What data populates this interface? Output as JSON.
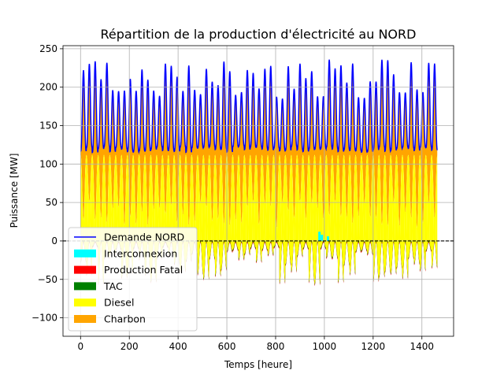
{
  "chart_data": {
    "type": "area",
    "title": "Répartition de la production d'électricité au NORD",
    "xlabel": "Temps [heure]",
    "ylabel": "Puissance [MW]",
    "xlim": [
      -72,
      1530
    ],
    "ylim": [
      -124,
      254
    ],
    "xticks": [
      0,
      200,
      400,
      600,
      800,
      1000,
      1200,
      1400
    ],
    "yticks": [
      -100,
      -50,
      0,
      50,
      100,
      150,
      200,
      250
    ],
    "grid": true,
    "legend_position": "lower-left",
    "hours": 1464,
    "zero_line": {
      "y": 0,
      "style": "dashed",
      "color": "#000000"
    },
    "series": [
      {
        "name": "Demande NORD",
        "kind": "line",
        "color": "#0000ff",
        "daily_min_approx": 115,
        "daily_peak_min": 185,
        "daily_peak_max": 237,
        "day_length_hours": 24
      },
      {
        "name": "Interconnexion",
        "kind": "area",
        "color": "#00ffff",
        "approx_range": [
          0,
          15
        ]
      },
      {
        "name": "Production Fatal",
        "kind": "area",
        "color": "#ff0000",
        "approx_range": [
          -55,
          0
        ]
      },
      {
        "name": "TAC",
        "kind": "area",
        "color": "#008000",
        "approx_range": [
          -98,
          0
        ]
      },
      {
        "name": "Diesel",
        "kind": "area",
        "color": "#ffff00",
        "approx_range": [
          -97,
          110
        ]
      },
      {
        "name": "Charbon",
        "kind": "area",
        "color": "#ffa500",
        "upper_bound_follows": "Demande NORD",
        "lower_min": 20,
        "lower_max": 110
      }
    ]
  }
}
